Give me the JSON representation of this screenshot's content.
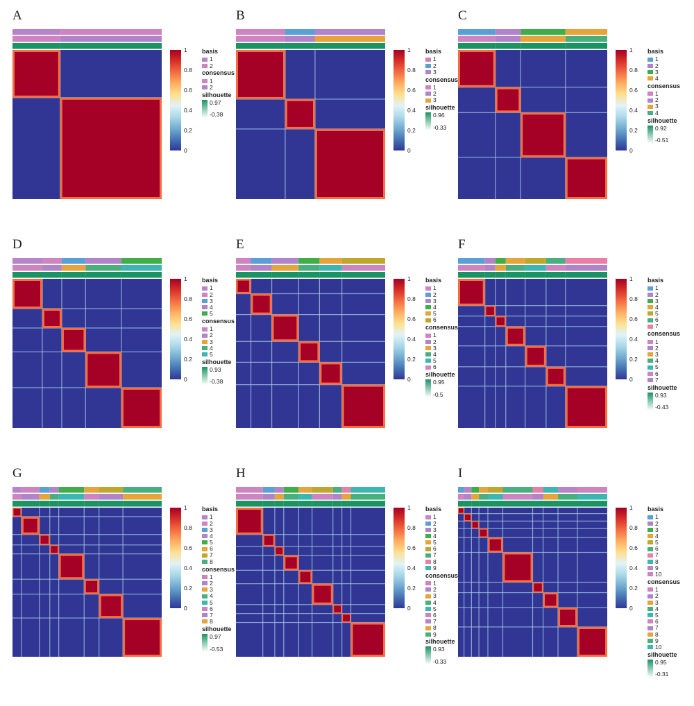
{
  "colors": {
    "heat": [
      "#313695",
      "#4575b4",
      "#74add1",
      "#abd9e9",
      "#e0f3f8",
      "#fee090",
      "#fdae61",
      "#f46d43",
      "#d73027",
      "#a50026"
    ],
    "annotation": [
      "#b883c9",
      "#ce84c0",
      "#5a9fd6",
      "#b183c8",
      "#3fae49",
      "#e7a43a",
      "#bea72c",
      "#4aaf7e",
      "#e97fa6",
      "#3cb6b0"
    ],
    "silhouette_high": "#1a9463"
  },
  "colorbar": {
    "ticks": [
      "1",
      "0.8",
      "0.6",
      "0.4",
      "0.2",
      "0"
    ]
  },
  "chart_data": [
    {
      "panel": "A",
      "type": "heatmap",
      "k": 2,
      "cluster_fractions": [
        0.32,
        0.68
      ],
      "basis": [
        "1",
        "2"
      ],
      "consensus": [
        "1",
        "2"
      ],
      "silhouette": {
        "max": "0.97",
        "min": "-0.38"
      }
    },
    {
      "panel": "B",
      "type": "heatmap",
      "k": 3,
      "cluster_fractions": [
        0.33,
        0.2,
        0.47
      ],
      "basis": [
        "1",
        "2",
        "3"
      ],
      "consensus": [
        "1",
        "2",
        "3"
      ],
      "silhouette": {
        "max": "0.96",
        "min": "-0.33"
      }
    },
    {
      "panel": "C",
      "type": "heatmap",
      "k": 4,
      "cluster_fractions": [
        0.25,
        0.17,
        0.3,
        0.28
      ],
      "basis": [
        "1",
        "2",
        "3",
        "4"
      ],
      "consensus": [
        "1",
        "2",
        "3",
        "4"
      ],
      "silhouette": {
        "max": "0.92",
        "min": "-0.51"
      }
    },
    {
      "panel": "D",
      "type": "heatmap",
      "k": 5,
      "cluster_fractions": [
        0.2,
        0.13,
        0.16,
        0.24,
        0.27
      ],
      "basis": [
        "1",
        "2",
        "3",
        "4",
        "5"
      ],
      "consensus": [
        "1",
        "2",
        "3",
        "4",
        "5"
      ],
      "silhouette": {
        "max": "0.93",
        "min": "-0.38"
      }
    },
    {
      "panel": "E",
      "type": "heatmap",
      "k": 6,
      "cluster_fractions": [
        0.1,
        0.14,
        0.18,
        0.14,
        0.15,
        0.29
      ],
      "basis": [
        "1",
        "2",
        "3",
        "4",
        "5",
        "6"
      ],
      "consensus": [
        "1",
        "2",
        "3",
        "4",
        "5",
        "6"
      ],
      "silhouette": {
        "max": "0.95",
        "min": "-0.5"
      }
    },
    {
      "panel": "F",
      "type": "heatmap",
      "k": 7,
      "cluster_fractions": [
        0.18,
        0.07,
        0.07,
        0.13,
        0.14,
        0.13,
        0.28
      ],
      "basis": [
        "1",
        "2",
        "3",
        "4",
        "5",
        "6",
        "7"
      ],
      "consensus": [
        "1",
        "2",
        "3",
        "4",
        "5",
        "6",
        "7"
      ],
      "silhouette": {
        "max": "0.93",
        "min": "-0.43"
      }
    },
    {
      "panel": "G",
      "type": "heatmap",
      "k": 8,
      "cluster_fractions": [
        0.06,
        0.12,
        0.07,
        0.06,
        0.17,
        0.1,
        0.16,
        0.26
      ],
      "basis": [
        "1",
        "2",
        "3",
        "4",
        "5",
        "6",
        "7",
        "8"
      ],
      "consensus": [
        "1",
        "2",
        "3",
        "4",
        "5",
        "6",
        "7",
        "8"
      ],
      "silhouette": {
        "max": "0.97",
        "min": "-0.53"
      }
    },
    {
      "panel": "H",
      "type": "heatmap",
      "k": 9,
      "cluster_fractions": [
        0.18,
        0.08,
        0.06,
        0.1,
        0.09,
        0.14,
        0.06,
        0.06,
        0.23
      ],
      "basis": [
        "1",
        "2",
        "3",
        "4",
        "5",
        "6",
        "7",
        "8",
        "9"
      ],
      "consensus": [
        "1",
        "2",
        "3",
        "4",
        "5",
        "6",
        "7",
        "8",
        "9"
      ],
      "silhouette": {
        "max": "0.93",
        "min": "-0.33"
      }
    },
    {
      "panel": "I",
      "type": "heatmap",
      "k": 10,
      "cluster_fractions": [
        0.04,
        0.05,
        0.05,
        0.06,
        0.1,
        0.2,
        0.07,
        0.1,
        0.13,
        0.2
      ],
      "basis": [
        "1",
        "2",
        "3",
        "4",
        "5",
        "6",
        "7",
        "8",
        "9",
        "10"
      ],
      "consensus": [
        "1",
        "2",
        "3",
        "4",
        "5",
        "6",
        "7",
        "8",
        "9",
        "10"
      ],
      "silhouette": {
        "max": "0.95",
        "min": "-0.31"
      }
    }
  ],
  "labels": {
    "basis": "basis",
    "consensus": "consensus",
    "silhouette": "silhouette"
  }
}
